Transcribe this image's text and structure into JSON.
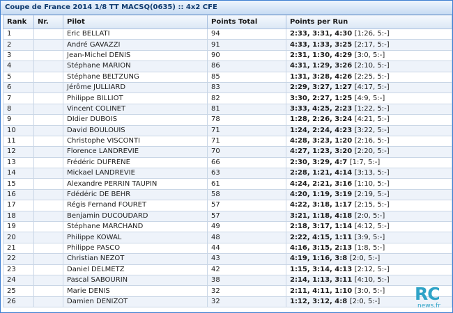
{
  "window": {
    "title": "Coupe de France 2014 1/8 TT MACSQ(0635) :: 4x2 CFE"
  },
  "table": {
    "headers": [
      "Rank",
      "Nr.",
      "Pilot",
      "Points Total",
      "Points per Run"
    ],
    "rows": [
      {
        "rank": "1",
        "nr": "",
        "pilot": "Eric BELLATI",
        "total": "94",
        "runs": "2:33, 3:31, 4:30 [1:26, 5:-]"
      },
      {
        "rank": "2",
        "nr": "",
        "pilot": "André GAVAZZI",
        "total": "91",
        "runs": "4:33, 1:33, 3:25 [2:17, 5:-]"
      },
      {
        "rank": "3",
        "nr": "",
        "pilot": "Jean-Michel DENIS",
        "total": "90",
        "runs": "2:31, 1:30, 4:29 [3:0, 5:-]"
      },
      {
        "rank": "4",
        "nr": "",
        "pilot": "Stéphane MARION",
        "total": "86",
        "runs": "4:31, 1:29, 3:26 [2:10, 5:-]"
      },
      {
        "rank": "5",
        "nr": "",
        "pilot": "Stéphane BELTZUNG",
        "total": "85",
        "runs": "1:31, 3:28, 4:26 [2:25, 5:-]"
      },
      {
        "rank": "6",
        "nr": "",
        "pilot": "Jérôme JULLIARD",
        "total": "83",
        "runs": "2:29, 3:27, 1:27 [4:17, 5:-]"
      },
      {
        "rank": "7",
        "nr": "",
        "pilot": "Philippe BILLIOT",
        "total": "82",
        "runs": "3:30, 2:27, 1:25 [4:9, 5:-]"
      },
      {
        "rank": "8",
        "nr": "",
        "pilot": "Vincent COLINET",
        "total": "81",
        "runs": "3:33, 4:25, 2:23 [1:22, 5:-]"
      },
      {
        "rank": "9",
        "nr": "",
        "pilot": "DIdier DUBOIS",
        "total": "78",
        "runs": "1:28, 2:26, 3:24 [4:21, 5:-]"
      },
      {
        "rank": "10",
        "nr": "",
        "pilot": "David BOULOUIS",
        "total": "71",
        "runs": "1:24, 2:24, 4:23 [3:22, 5:-]"
      },
      {
        "rank": "11",
        "nr": "",
        "pilot": "Christophe VISCONTI",
        "total": "71",
        "runs": "4:28, 3:23, 1:20 [2:16, 5:-]"
      },
      {
        "rank": "12",
        "nr": "",
        "pilot": "Florence LANDREVIE",
        "total": "70",
        "runs": "4:27, 1:23, 3:20 [2:20, 5:-]"
      },
      {
        "rank": "13",
        "nr": "",
        "pilot": "Frédéric DUFRENE",
        "total": "66",
        "runs": "2:30, 3:29, 4:7 [1:7, 5:-]"
      },
      {
        "rank": "14",
        "nr": "",
        "pilot": "Mickael LANDREVIE",
        "total": "63",
        "runs": "2:28, 1:21, 4:14 [3:13, 5:-]"
      },
      {
        "rank": "15",
        "nr": "",
        "pilot": "Alexandre PERRIN TAUPIN",
        "total": "61",
        "runs": "4:24, 2:21, 3:16 [1:10, 5:-]"
      },
      {
        "rank": "16",
        "nr": "",
        "pilot": "Fdédéric DE BEHR",
        "total": "58",
        "runs": "4:20, 1:19, 3:19 [2:19, 5:-]"
      },
      {
        "rank": "17",
        "nr": "",
        "pilot": "Régis Fernand FOURET",
        "total": "57",
        "runs": "4:22, 3:18, 1:17 [2:15, 5:-]"
      },
      {
        "rank": "18",
        "nr": "",
        "pilot": "Benjamin DUCOUDARD",
        "total": "57",
        "runs": "3:21, 1:18, 4:18 [2:0, 5:-]"
      },
      {
        "rank": "19",
        "nr": "",
        "pilot": "Stéphane MARCHAND",
        "total": "49",
        "runs": "2:18, 3:17, 1:14 [4:12, 5:-]"
      },
      {
        "rank": "20",
        "nr": "",
        "pilot": "Philippe KOWAL",
        "total": "48",
        "runs": "2:22, 4:15, 1:11 [3:9, 5:-]"
      },
      {
        "rank": "21",
        "nr": "",
        "pilot": "Philippe PASCO",
        "total": "44",
        "runs": "4:16, 3:15, 2:13 [1:8, 5:-]"
      },
      {
        "rank": "22",
        "nr": "",
        "pilot": "Christian NEZOT",
        "total": "43",
        "runs": "4:19, 1:16, 3:8 [2:0, 5:-]"
      },
      {
        "rank": "23",
        "nr": "",
        "pilot": "Daniel DELMETZ",
        "total": "42",
        "runs": "1:15, 3:14, 4:13 [2:12, 5:-]"
      },
      {
        "rank": "24",
        "nr": "",
        "pilot": "Pascal SABOURIN",
        "total": "38",
        "runs": "2:14, 1:13, 3:11 [4:10, 5:-]"
      },
      {
        "rank": "25",
        "nr": "",
        "pilot": "Marie DENIS",
        "total": "32",
        "runs": "2:11, 4:11, 1:10 [3:0, 5:-]"
      },
      {
        "rank": "26",
        "nr": "",
        "pilot": "Damien DENIZOT",
        "total": "32",
        "runs": "1:12, 3:12, 4:8 [2:0, 5:-]"
      }
    ]
  },
  "watermark": {
    "primary": "RC",
    "secondary": "news.fr"
  },
  "colors": {
    "accent": "#3e7fd1",
    "logo": "#2fa3c7",
    "row_alt": "#eef3fa"
  }
}
